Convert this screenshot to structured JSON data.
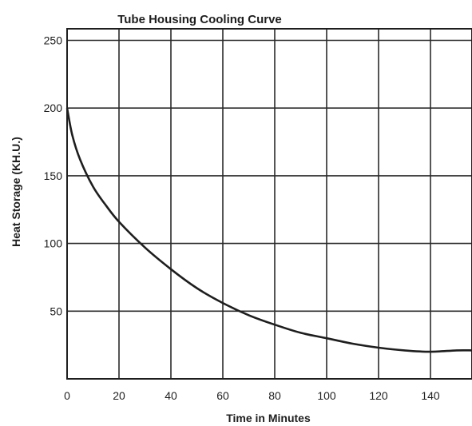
{
  "chart_data": {
    "type": "line",
    "title": "Tube Housing Cooling Curve",
    "xlabel": "Time in Minutes",
    "ylabel": "Heat Storage (KH.U.)",
    "xlim": [
      0,
      156
    ],
    "ylim": [
      0,
      260
    ],
    "x_ticks": [
      0,
      20,
      40,
      60,
      80,
      100,
      120,
      140
    ],
    "y_ticks": [
      50,
      100,
      150,
      200,
      250
    ],
    "grid": true,
    "legend": "none",
    "series": [
      {
        "x": [
          0,
          2,
          5,
          10,
          15,
          20,
          30,
          40,
          50,
          60,
          70,
          80,
          90,
          100,
          110,
          120,
          130,
          140,
          150,
          156
        ],
        "y": [
          200,
          180,
          162,
          142,
          128,
          116,
          97,
          81,
          67,
          56,
          47,
          40,
          34,
          30,
          26,
          23,
          21,
          20,
          21,
          21
        ]
      }
    ],
    "color": "#1e1e1e"
  }
}
